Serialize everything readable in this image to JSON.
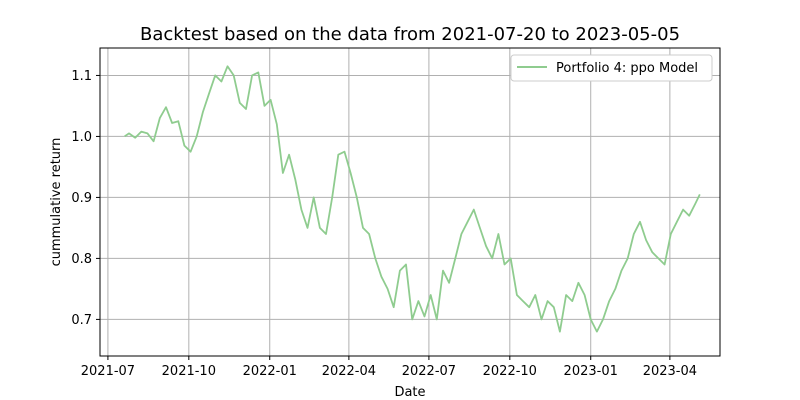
{
  "chart_data": {
    "type": "line",
    "title": "Backtest based on the data from 2021-07-20  to  2023-05-05",
    "xlabel": "Date",
    "ylabel": "cummulative return",
    "xlim": [
      "2021-06-22",
      "2023-05-28"
    ],
    "ylim": [
      0.64,
      1.145
    ],
    "x_ticks": [
      "2021-07",
      "2021-10",
      "2022-01",
      "2022-04",
      "2022-07",
      "2022-10",
      "2023-01",
      "2023-04"
    ],
    "y_ticks": [
      0.7,
      0.8,
      0.9,
      1.0,
      1.1
    ],
    "y_tick_labels": [
      "0.7",
      "0.8",
      "0.9",
      "1.0",
      "1.1"
    ],
    "grid": true,
    "legend_position": "top-right",
    "series": [
      {
        "name": "Portfolio 4: ppo Model",
        "color": "#8fcc8f",
        "x": [
          "2021-07-20",
          "2021-07-25",
          "2021-08-01",
          "2021-08-08",
          "2021-08-15",
          "2021-08-22",
          "2021-08-29",
          "2021-09-05",
          "2021-09-12",
          "2021-09-19",
          "2021-09-26",
          "2021-10-03",
          "2021-10-10",
          "2021-10-17",
          "2021-10-24",
          "2021-10-31",
          "2021-11-07",
          "2021-11-14",
          "2021-11-21",
          "2021-11-28",
          "2021-12-05",
          "2021-12-12",
          "2021-12-19",
          "2021-12-26",
          "2022-01-02",
          "2022-01-09",
          "2022-01-16",
          "2022-01-23",
          "2022-01-30",
          "2022-02-06",
          "2022-02-13",
          "2022-02-20",
          "2022-02-27",
          "2022-03-06",
          "2022-03-13",
          "2022-03-20",
          "2022-03-27",
          "2022-04-03",
          "2022-04-10",
          "2022-04-17",
          "2022-04-24",
          "2022-05-01",
          "2022-05-08",
          "2022-05-15",
          "2022-05-22",
          "2022-05-29",
          "2022-06-05",
          "2022-06-12",
          "2022-06-19",
          "2022-06-26",
          "2022-07-03",
          "2022-07-10",
          "2022-07-17",
          "2022-07-24",
          "2022-07-31",
          "2022-08-07",
          "2022-08-14",
          "2022-08-21",
          "2022-08-28",
          "2022-09-04",
          "2022-09-11",
          "2022-09-18",
          "2022-09-25",
          "2022-10-02",
          "2022-10-09",
          "2022-10-16",
          "2022-10-23",
          "2022-10-30",
          "2022-11-06",
          "2022-11-13",
          "2022-11-20",
          "2022-11-27",
          "2022-12-04",
          "2022-12-11",
          "2022-12-18",
          "2022-12-25",
          "2023-01-01",
          "2023-01-08",
          "2023-01-15",
          "2023-01-22",
          "2023-01-29",
          "2023-02-05",
          "2023-02-12",
          "2023-02-19",
          "2023-02-26",
          "2023-03-05",
          "2023-03-12",
          "2023-03-19",
          "2023-03-26",
          "2023-04-02",
          "2023-04-09",
          "2023-04-16",
          "2023-04-23",
          "2023-04-30",
          "2023-05-05"
        ],
        "values": [
          1.0,
          1.005,
          0.998,
          1.008,
          1.005,
          0.992,
          1.03,
          1.048,
          1.022,
          1.025,
          0.985,
          0.975,
          1.0,
          1.04,
          1.07,
          1.1,
          1.09,
          1.115,
          1.1,
          1.055,
          1.045,
          1.1,
          1.105,
          1.05,
          1.06,
          1.02,
          0.94,
          0.97,
          0.93,
          0.88,
          0.85,
          0.9,
          0.85,
          0.84,
          0.9,
          0.97,
          0.975,
          0.94,
          0.9,
          0.85,
          0.84,
          0.8,
          0.77,
          0.75,
          0.72,
          0.78,
          0.79,
          0.7,
          0.73,
          0.705,
          0.74,
          0.7,
          0.78,
          0.76,
          0.8,
          0.84,
          0.86,
          0.88,
          0.85,
          0.82,
          0.8,
          0.84,
          0.79,
          0.8,
          0.74,
          0.73,
          0.72,
          0.74,
          0.7,
          0.73,
          0.72,
          0.68,
          0.74,
          0.73,
          0.76,
          0.74,
          0.7,
          0.68,
          0.7,
          0.73,
          0.75,
          0.78,
          0.8,
          0.84,
          0.86,
          0.83,
          0.81,
          0.8,
          0.79,
          0.84,
          0.86,
          0.88,
          0.87,
          0.89,
          0.905
        ]
      }
    ]
  }
}
